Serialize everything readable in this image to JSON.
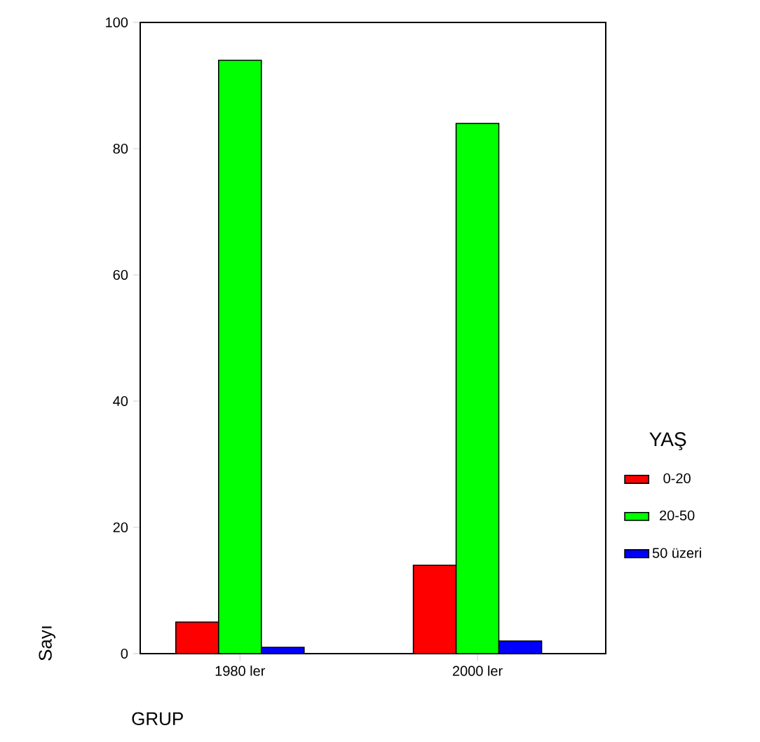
{
  "chart_data": {
    "type": "bar",
    "xlabel": "GRUP",
    "ylabel": "Sayı",
    "legend_title": "YAŞ",
    "legend": "right",
    "categories": [
      "1980 ler",
      "2000 ler"
    ],
    "series": [
      {
        "name": "0-20",
        "color": "#ff0000",
        "values": [
          5,
          14
        ]
      },
      {
        "name": "20-50",
        "color": "#00ff00",
        "values": [
          94,
          84
        ]
      },
      {
        "name": "50 üzeri",
        "color": "#0000ff",
        "values": [
          1,
          2
        ]
      }
    ],
    "ylim": [
      0,
      100
    ],
    "yticks": [
      0,
      20,
      40,
      60,
      80,
      100
    ],
    "grid": false
  }
}
